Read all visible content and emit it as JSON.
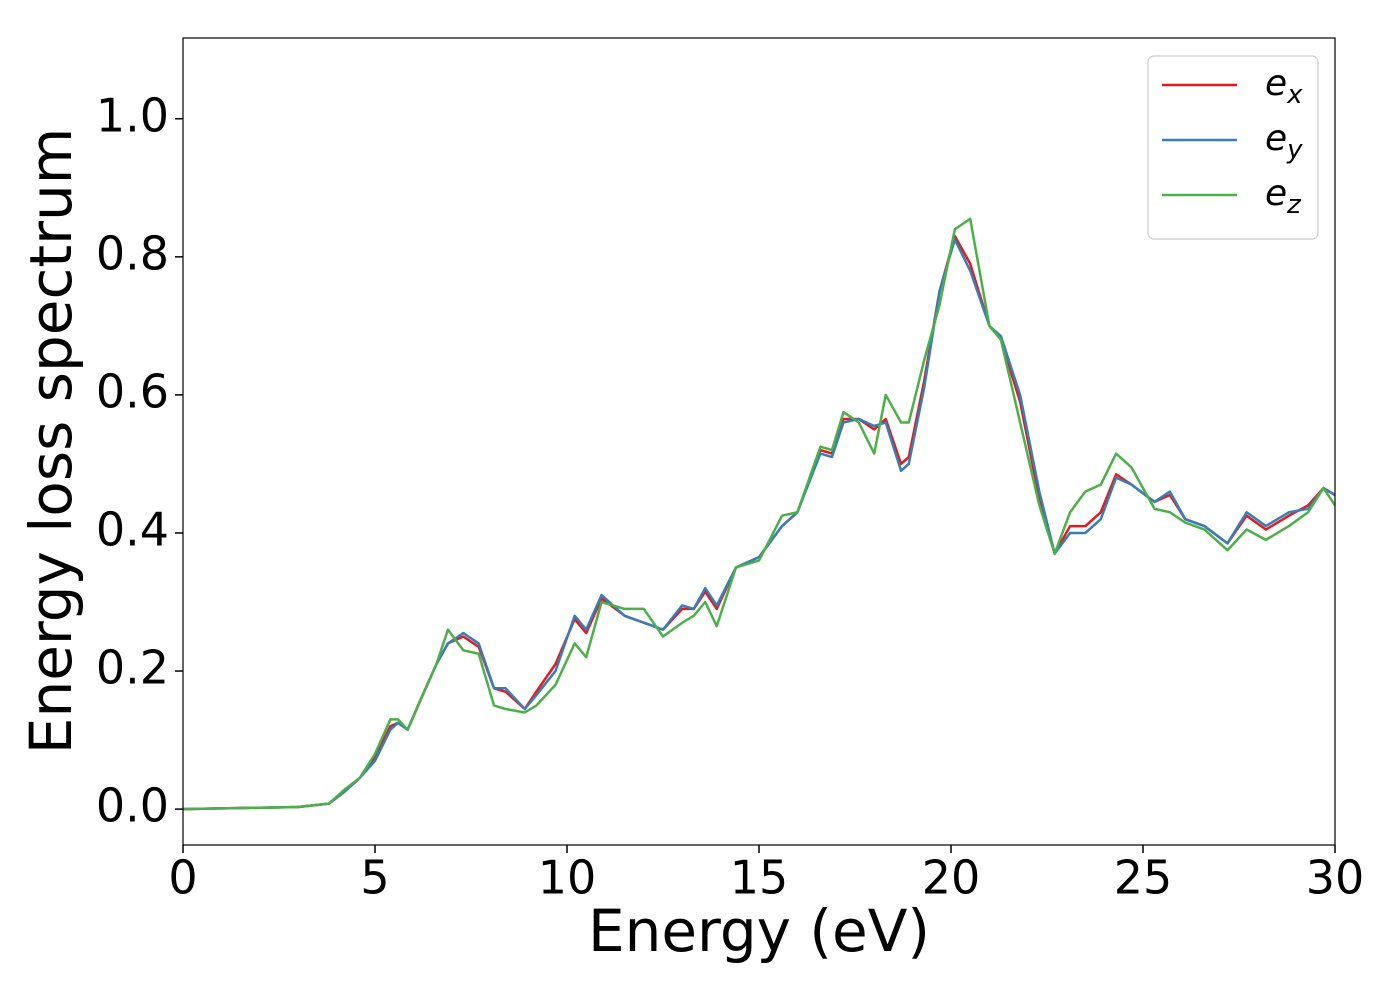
{
  "chart_data": {
    "type": "line",
    "xlabel": "Energy (eV)",
    "ylabel": "Energy loss spectrum",
    "x": [
      0,
      3,
      3.8,
      4.2,
      4.6,
      5,
      5.4,
      5.6,
      5.85,
      6.2,
      6.6,
      6.9,
      7.3,
      7.7,
      8.1,
      8.4,
      8.9,
      9.2,
      9.7,
      10.2,
      10.5,
      10.9,
      11.5,
      12,
      12.5,
      13,
      13.3,
      13.6,
      13.9,
      14.4,
      15,
      15.6,
      16,
      16.6,
      16.9,
      17.2,
      17.6,
      18,
      18.3,
      18.7,
      18.9,
      19.3,
      19.7,
      20.1,
      20.5,
      21,
      21.3,
      21.8,
      22.3,
      22.7,
      23.1,
      23.5,
      23.9,
      24.3,
      24.7,
      25.3,
      25.7,
      26.1,
      26.6,
      27.2,
      27.7,
      28.2,
      28.8,
      29.3,
      29.7,
      30
    ],
    "series": [
      {
        "name": "ex",
        "color": "#e41a1c",
        "values": [
          0,
          0.003,
          0.008,
          0.025,
          0.045,
          0.075,
          0.12,
          0.125,
          0.115,
          0.16,
          0.21,
          0.24,
          0.25,
          0.235,
          0.175,
          0.17,
          0.145,
          0.17,
          0.21,
          0.275,
          0.255,
          0.305,
          0.28,
          0.27,
          0.26,
          0.29,
          0.29,
          0.315,
          0.29,
          0.35,
          0.365,
          0.41,
          0.43,
          0.52,
          0.515,
          0.565,
          0.565,
          0.55,
          0.565,
          0.5,
          0.51,
          0.62,
          0.75,
          0.83,
          0.79,
          0.7,
          0.68,
          0.59,
          0.45,
          0.37,
          0.41,
          0.41,
          0.43,
          0.485,
          0.47,
          0.445,
          0.455,
          0.42,
          0.41,
          0.385,
          0.425,
          0.405,
          0.425,
          0.44,
          0.465,
          0.455
        ]
      },
      {
        "name": "ey",
        "color": "#377eb8",
        "values": [
          0,
          0.003,
          0.008,
          0.025,
          0.045,
          0.07,
          0.115,
          0.125,
          0.115,
          0.16,
          0.21,
          0.24,
          0.255,
          0.24,
          0.175,
          0.175,
          0.145,
          0.165,
          0.2,
          0.28,
          0.26,
          0.31,
          0.28,
          0.27,
          0.26,
          0.295,
          0.29,
          0.32,
          0.295,
          0.35,
          0.365,
          0.41,
          0.43,
          0.515,
          0.51,
          0.56,
          0.565,
          0.555,
          0.56,
          0.49,
          0.5,
          0.61,
          0.75,
          0.825,
          0.78,
          0.7,
          0.685,
          0.6,
          0.46,
          0.37,
          0.4,
          0.4,
          0.42,
          0.48,
          0.47,
          0.445,
          0.46,
          0.42,
          0.41,
          0.385,
          0.43,
          0.41,
          0.43,
          0.435,
          0.465,
          0.455
        ]
      },
      {
        "name": "ez",
        "color": "#4daf4a",
        "values": [
          0,
          0.003,
          0.008,
          0.028,
          0.045,
          0.08,
          0.13,
          0.13,
          0.115,
          0.16,
          0.21,
          0.26,
          0.23,
          0.225,
          0.15,
          0.145,
          0.14,
          0.15,
          0.18,
          0.24,
          0.22,
          0.3,
          0.29,
          0.29,
          0.25,
          0.27,
          0.28,
          0.3,
          0.265,
          0.35,
          0.36,
          0.425,
          0.43,
          0.525,
          0.52,
          0.575,
          0.56,
          0.515,
          0.6,
          0.56,
          0.56,
          0.65,
          0.73,
          0.84,
          0.855,
          0.7,
          0.68,
          0.56,
          0.44,
          0.37,
          0.43,
          0.46,
          0.47,
          0.515,
          0.495,
          0.435,
          0.43,
          0.415,
          0.405,
          0.375,
          0.405,
          0.39,
          0.41,
          0.43,
          0.465,
          0.44
        ]
      }
    ],
    "xlim": [
      0,
      30
    ],
    "xticks": [
      0,
      5,
      10,
      15,
      20,
      25,
      30
    ],
    "ylim": [
      -0.052,
      1.117
    ],
    "yticks": [
      {
        "value": 0,
        "label": "0.0"
      },
      0.2,
      0.4,
      0.6,
      0.8,
      {
        "value": 1,
        "label": "1.0"
      }
    ],
    "grid": false,
    "legend": "upper right"
  }
}
